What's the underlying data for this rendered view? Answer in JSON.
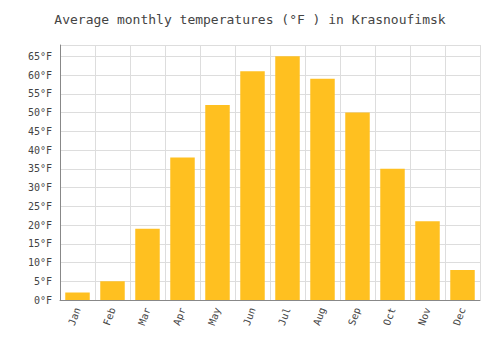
{
  "chart_data": {
    "type": "bar",
    "title": "Average monthly temperatures (°F ) in Krasnoufimsk",
    "categories": [
      "Jan",
      "Feb",
      "Mar",
      "Apr",
      "May",
      "Jun",
      "Jul",
      "Aug",
      "Sep",
      "Oct",
      "Nov",
      "Dec"
    ],
    "values": [
      2,
      5,
      19,
      38,
      52,
      61,
      65,
      59,
      50,
      35,
      21,
      8
    ],
    "color": "#FFC020",
    "ylim": [
      0,
      68
    ],
    "yticks": [
      {
        "value": 0,
        "label": "0°F"
      },
      {
        "value": 5,
        "label": "5°F"
      },
      {
        "value": 10,
        "label": "10°F"
      },
      {
        "value": 15,
        "label": "15°F"
      },
      {
        "value": 20,
        "label": "20°F"
      },
      {
        "value": 25,
        "label": "25°F"
      },
      {
        "value": 30,
        "label": "30°F"
      },
      {
        "value": 35,
        "label": "35°F"
      },
      {
        "value": 40,
        "label": "40°F"
      },
      {
        "value": 45,
        "label": "45°F"
      },
      {
        "value": 50,
        "label": "50°F"
      },
      {
        "value": 55,
        "label": "55°F"
      },
      {
        "value": 60,
        "label": "60°F"
      },
      {
        "value": 65,
        "label": "65°F"
      }
    ],
    "grid": true
  }
}
